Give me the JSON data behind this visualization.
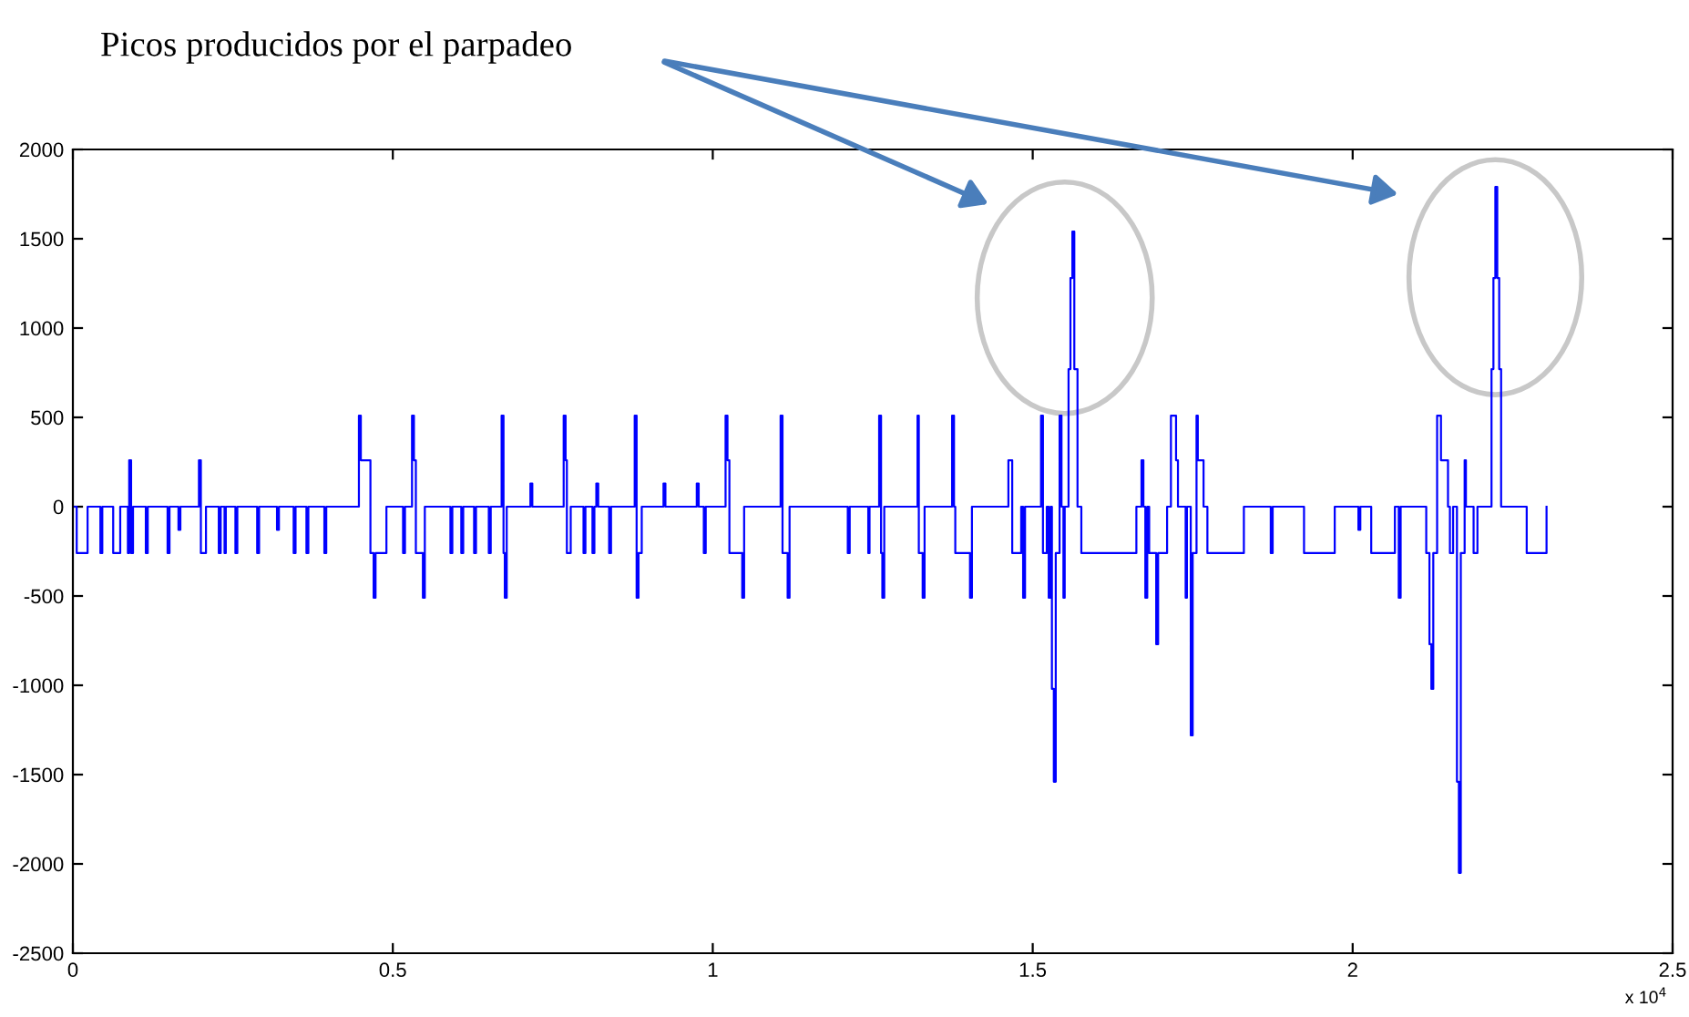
{
  "chart_data": {
    "type": "step",
    "annotations": [
      "Picos producidos por el parpadeo",
      "x 10$^{4}$"
    ],
    "xlim": [
      0,
      2.5
    ],
    "ylim": [
      -2500,
      2000
    ],
    "xticks": [
      0,
      0.5,
      1,
      1.5,
      2,
      2.5
    ],
    "yticks": [
      -2500,
      -2000,
      -1500,
      -1000,
      -500,
      0,
      500,
      1000,
      1500,
      2000
    ],
    "grid": false,
    "legend": false,
    "series": [
      {
        "color": "#0000ff",
        "x": [
          0,
          0.006,
          0.023,
          0.043,
          0.046,
          0.063,
          0.074,
          0.086,
          0.088,
          0.091,
          0.094,
          0.114,
          0.117,
          0.148,
          0.151,
          0.165,
          0.168,
          0.197,
          0.2,
          0.208,
          0.228,
          0.231,
          0.237,
          0.239,
          0.254,
          0.257,
          0.288,
          0.291,
          0.319,
          0.322,
          0.345,
          0.348,
          0.365,
          0.368,
          0.393,
          0.396,
          0.447,
          0.45,
          0.465,
          0.47,
          0.473,
          0.49,
          0.516,
          0.519,
          0.53,
          0.533,
          0.536,
          0.547,
          0.55,
          0.59,
          0.593,
          0.607,
          0.61,
          0.627,
          0.63,
          0.65,
          0.653,
          0.67,
          0.673,
          0.675,
          0.678,
          0.715,
          0.718,
          0.767,
          0.77,
          0.772,
          0.778,
          0.798,
          0.801,
          0.812,
          0.815,
          0.818,
          0.821,
          0.838,
          0.841,
          0.878,
          0.881,
          0.884,
          0.889,
          0.923,
          0.926,
          0.975,
          0.978,
          0.986,
          0.989,
          1.02,
          1.023,
          1.026,
          1.046,
          1.049,
          1.106,
          1.109,
          1.117,
          1.12,
          1.211,
          1.214,
          1.243,
          1.245,
          1.26,
          1.263,
          1.265,
          1.268,
          1.32,
          1.322,
          1.328,
          1.331,
          1.374,
          1.377,
          1.379,
          1.402,
          1.405,
          1.462,
          1.468,
          1.482,
          1.485,
          1.488,
          1.513,
          1.516,
          1.522,
          1.525,
          1.528,
          1.53,
          1.533,
          1.536,
          1.542,
          1.545,
          1.548,
          1.55,
          1.556,
          1.559,
          1.562,
          1.565,
          1.57,
          1.576,
          1.662,
          1.67,
          1.673,
          1.676,
          1.679,
          1.682,
          1.693,
          1.696,
          1.71,
          1.716,
          1.724,
          1.727,
          1.739,
          1.741,
          1.747,
          1.75,
          1.756,
          1.758,
          1.767,
          1.773,
          1.83,
          1.872,
          1.875,
          1.924,
          1.972,
          2.009,
          2.012,
          2.029,
          2.066,
          2.072,
          2.075,
          2.115,
          2.12,
          2.123,
          2.126,
          2.132,
          2.138,
          2.149,
          2.152,
          2.157,
          2.163,
          2.166,
          2.169,
          2.175,
          2.177,
          2.189,
          2.195,
          2.217,
          2.22,
          2.223,
          2.226,
          2.229,
          2.232,
          2.272,
          2.303
        ],
        "values": [
          0,
          -260,
          0,
          -260,
          0,
          -260,
          0,
          -260,
          260,
          -260,
          0,
          -260,
          0,
          -260,
          0,
          -130,
          0,
          260,
          -260,
          0,
          -260,
          0,
          -260,
          0,
          -260,
          0,
          -260,
          0,
          -130,
          0,
          -260,
          0,
          -260,
          0,
          -260,
          0,
          510,
          260,
          -260,
          -510,
          -260,
          0,
          -260,
          0,
          510,
          260,
          -260,
          -510,
          0,
          -260,
          0,
          -260,
          0,
          -260,
          0,
          -260,
          0,
          510,
          -260,
          -510,
          0,
          130,
          0,
          510,
          260,
          -260,
          0,
          -260,
          0,
          -260,
          0,
          130,
          0,
          -260,
          0,
          510,
          -510,
          -260,
          0,
          130,
          0,
          130,
          0,
          -260,
          0,
          510,
          260,
          -260,
          -510,
          0,
          510,
          -260,
          -510,
          0,
          -260,
          0,
          -260,
          0,
          510,
          -260,
          -510,
          0,
          510,
          -260,
          -510,
          0,
          510,
          0,
          -260,
          -510,
          0,
          260,
          -260,
          0,
          -510,
          0,
          510,
          -260,
          0,
          -510,
          0,
          -1020,
          -1540,
          -260,
          510,
          0,
          -510,
          0,
          770,
          1280,
          1540,
          770,
          0,
          -260,
          0,
          260,
          0,
          -510,
          0,
          -260,
          -770,
          -260,
          0,
          510,
          260,
          0,
          -510,
          0,
          -1280,
          -260,
          510,
          260,
          0,
          -260,
          0,
          -260,
          0,
          -260,
          0,
          -130,
          0,
          -260,
          0,
          -510,
          0,
          -260,
          -770,
          -1020,
          -260,
          510,
          260,
          0,
          -260,
          0,
          -1540,
          -2050,
          -260,
          260,
          0,
          -260,
          0,
          770,
          1280,
          1790,
          1280,
          770,
          0,
          -260,
          0
        ]
      }
    ]
  }
}
